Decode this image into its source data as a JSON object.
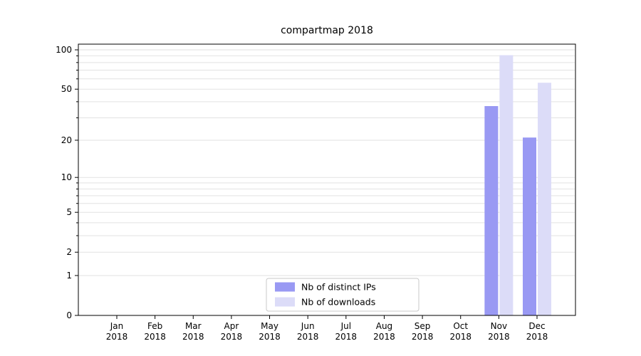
{
  "chart_data": {
    "type": "bar",
    "title": "compartmap 2018",
    "categories": [
      "Jan",
      "Feb",
      "Mar",
      "Apr",
      "May",
      "Jun",
      "Jul",
      "Aug",
      "Sep",
      "Oct",
      "Nov",
      "Dec"
    ],
    "category_year": "2018",
    "series": [
      {
        "name": "Nb of distinct IPs",
        "color": "#9999f3",
        "values": [
          0,
          0,
          0,
          0,
          0,
          0,
          0,
          0,
          0,
          0,
          37,
          21
        ]
      },
      {
        "name": "Nb of downloads",
        "color": "#dcdcf8",
        "values": [
          0,
          0,
          0,
          0,
          0,
          0,
          0,
          0,
          0,
          0,
          91,
          56
        ]
      }
    ],
    "y_scale": "log1p",
    "ylim": [
      0,
      100
    ],
    "ytick_labels": [
      0,
      1,
      2,
      5,
      10,
      20,
      50,
      100
    ],
    "minor_gridlines": [
      1,
      2,
      3,
      4,
      5,
      6,
      7,
      8,
      9,
      10,
      20,
      30,
      40,
      50,
      60,
      70,
      80,
      90,
      100
    ],
    "grid": true,
    "legend_position": "bottom-center",
    "colors": {
      "grid": "#e2e2e2",
      "axis": "#000000",
      "background": "#ffffff",
      "legend_border": "#c8c8c8",
      "text": "#000000"
    }
  }
}
